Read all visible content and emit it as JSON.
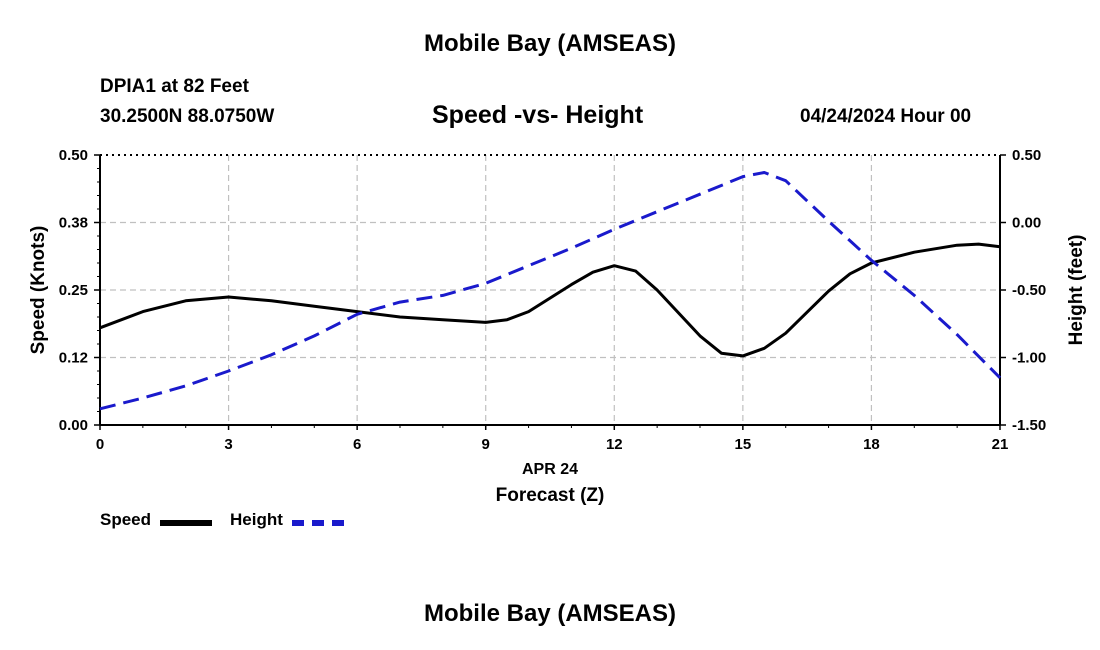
{
  "header": {
    "title": "Mobile Bay (AMSEAS)",
    "station": "DPIA1 at 82 Feet",
    "coords": "30.2500N  88.0750W",
    "subtitle": "Speed -vs- Height",
    "datetime": "04/24/2024 Hour 00"
  },
  "footer": {
    "title": "Mobile Bay (AMSEAS)"
  },
  "legend": {
    "speed_label": "Speed",
    "height_label": "Height"
  },
  "colors": {
    "speed": "#000000",
    "height": "#1a1acc",
    "grid": "#c0c0c0"
  },
  "chart_data": {
    "type": "line",
    "title": "Speed -vs- Height",
    "xlabel": "Forecast (Z)",
    "xdate_label": "APR 24",
    "ylabel_left": "Speed (Knots)",
    "ylabel_right": "Height (feet)",
    "xlim": [
      0,
      21
    ],
    "ylim_left": [
      0,
      0.5
    ],
    "ylim_right": [
      -1.5,
      0.5
    ],
    "x_ticks": [
      "0",
      "3",
      "6",
      "9",
      "12",
      "15",
      "18",
      "21"
    ],
    "y_left_ticks": [
      "0.00",
      "0.12",
      "0.25",
      "0.38",
      "0.50"
    ],
    "y_right_ticks": [
      "-1.50",
      "-1.00",
      "-0.50",
      "0.00",
      "0.50"
    ],
    "grid": true,
    "series": [
      {
        "name": "Speed",
        "axis": "left",
        "style": "solid",
        "x": [
          0,
          1,
          2,
          3,
          4,
          5,
          6,
          7,
          8,
          9,
          9.5,
          10,
          11,
          11.5,
          12,
          12.5,
          13,
          14,
          14.5,
          15,
          15.5,
          16,
          17,
          17.5,
          18,
          19,
          20,
          20.5,
          21
        ],
        "values": [
          0.18,
          0.21,
          0.23,
          0.237,
          0.23,
          0.22,
          0.21,
          0.2,
          0.195,
          0.19,
          0.195,
          0.21,
          0.26,
          0.283,
          0.295,
          0.285,
          0.25,
          0.165,
          0.133,
          0.128,
          0.142,
          0.17,
          0.248,
          0.28,
          0.3,
          0.32,
          0.333,
          0.335,
          0.33
        ]
      },
      {
        "name": "Height",
        "axis": "right",
        "style": "dashed",
        "x": [
          0,
          1,
          2,
          3,
          4,
          5,
          6,
          7,
          8,
          9,
          10,
          11,
          12,
          13,
          14,
          15,
          15.5,
          16,
          17,
          18,
          19,
          20,
          21
        ],
        "values": [
          -1.38,
          -1.3,
          -1.21,
          -1.1,
          -0.98,
          -0.84,
          -0.68,
          -0.59,
          -0.54,
          -0.45,
          -0.32,
          -0.19,
          -0.05,
          0.08,
          0.21,
          0.34,
          0.37,
          0.31,
          0.01,
          -0.28,
          -0.54,
          -0.83,
          -1.15
        ]
      }
    ]
  }
}
